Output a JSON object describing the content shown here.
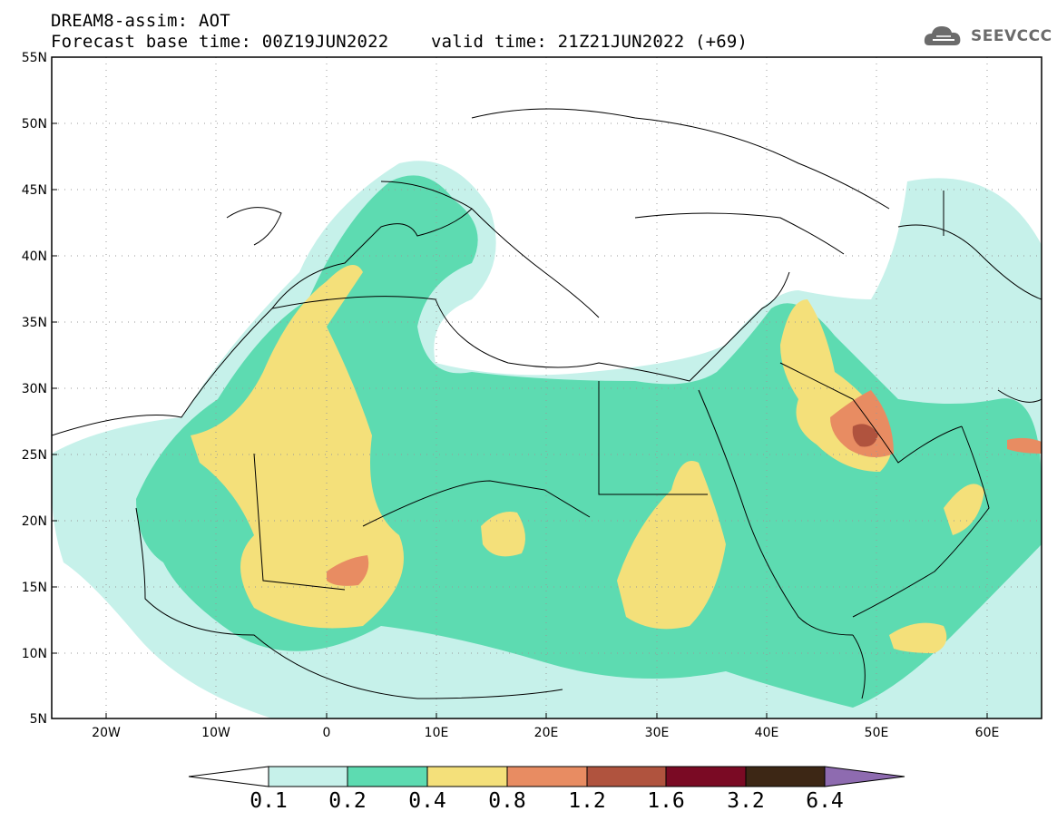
{
  "header": {
    "title_line1": "DREAM8-assim: AOT",
    "title_line2": "Forecast base time: 00Z19JUN2022    valid time: 21Z21JUN2022 (+69)"
  },
  "logo": {
    "text": "SEEVCCC",
    "icon": "cloud-icon",
    "color": "#6b6b6b"
  },
  "map": {
    "lon_range": [
      -25,
      65
    ],
    "lat_range": [
      5,
      55
    ],
    "lat_labels": [
      "55N",
      "50N",
      "45N",
      "40N",
      "35N",
      "30N",
      "25N",
      "20N",
      "15N",
      "10N",
      "5N"
    ],
    "lon_labels": [
      "20W",
      "10W",
      "0",
      "10E",
      "20E",
      "30E",
      "40E",
      "50E",
      "60E"
    ],
    "grid": "dotted"
  },
  "colorbar": {
    "labels": [
      "0.1",
      "0.2",
      "0.4",
      "0.8",
      "1.2",
      "1.6",
      "3.2",
      "6.4"
    ],
    "colors": [
      "#ffffff",
      "#c6f1ea",
      "#5ddbb1",
      "#f4e07a",
      "#e88c62",
      "#b0533e",
      "#7a0a24",
      "#3d2715",
      "#8e6bb0"
    ]
  }
}
